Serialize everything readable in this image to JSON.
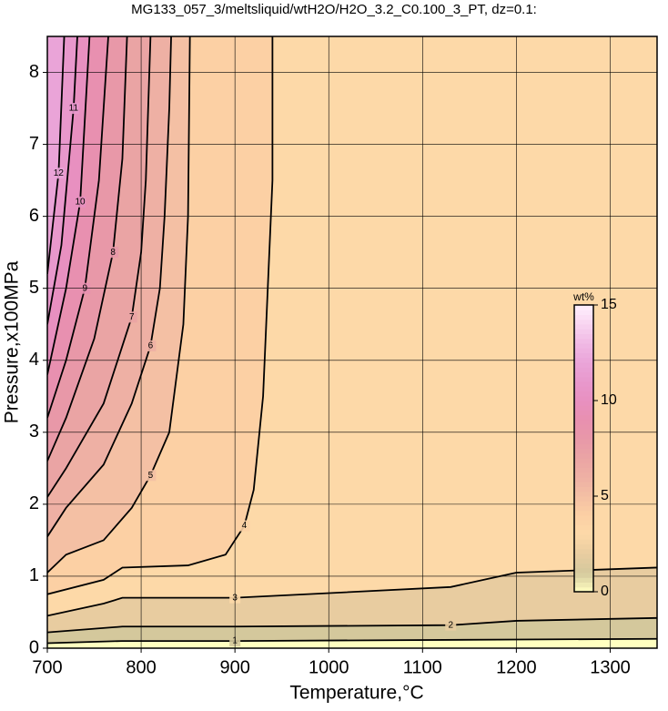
{
  "chart_data": {
    "type": "contour",
    "title": "MG133_057_3/meltsliquid/wtH2O/H2O_3.2_C0.100_3_PT, dz=0.1:",
    "x_label": "Temperature,°C",
    "y_label": "Pressure,x100MPa",
    "xlim": [
      700,
      1350
    ],
    "ylim": [
      0,
      8.5
    ],
    "xticks": [
      700,
      800,
      900,
      1000,
      1100,
      1200,
      1300
    ],
    "yticks": [
      0,
      1,
      2,
      3,
      4,
      5,
      6,
      7,
      8
    ],
    "grid": true,
    "line_color": "#000000",
    "colormap": [
      "#ffffc0",
      "#d4c89c",
      "#e8cca0",
      "#fdd9a8",
      "#fcd0a4",
      "#f4c0a4",
      "#eeb0a4",
      "#eaa4a4",
      "#e898a8",
      "#e890b0",
      "#e890c0",
      "#e898cc",
      "#eaa4d8",
      "#f0b8e4",
      "#f8d4f0",
      "#fff0ff"
    ],
    "colorbar": {
      "label": "wt%",
      "lim": [
        0,
        15
      ],
      "ticks": [
        0,
        5,
        10,
        15
      ]
    },
    "contours": [
      {
        "level": 1,
        "x": [
          700,
          780,
          900,
          1200,
          1350
        ],
        "y": [
          0.07,
          0.1,
          0.1,
          0.12,
          0.13
        ]
      },
      {
        "level": 2,
        "x": [
          700,
          780,
          900,
          1130,
          1200,
          1350
        ],
        "y": [
          0.22,
          0.3,
          0.3,
          0.32,
          0.38,
          0.42
        ]
      },
      {
        "level": 3,
        "x": [
          700,
          760,
          780,
          900,
          1130,
          1200,
          1350
        ],
        "y": [
          0.45,
          0.62,
          0.7,
          0.7,
          0.85,
          1.05,
          1.12
        ]
      },
      {
        "level": 4,
        "x": [
          700,
          760,
          780,
          850,
          890,
          910,
          920,
          930,
          935,
          940,
          940
        ],
        "y": [
          0.75,
          0.95,
          1.12,
          1.15,
          1.3,
          1.7,
          2.2,
          3.5,
          5.0,
          6.5,
          8.5
        ]
      },
      {
        "level": 5,
        "x": [
          700,
          720,
          760,
          790,
          810,
          830,
          845,
          850,
          852
        ],
        "y": [
          1.05,
          1.3,
          1.5,
          1.95,
          2.4,
          3.0,
          4.5,
          6.0,
          8.5
        ]
      },
      {
        "level": 6,
        "x": [
          700,
          720,
          760,
          790,
          810,
          820,
          825,
          830,
          832
        ],
        "y": [
          1.55,
          1.95,
          2.55,
          3.4,
          4.2,
          5.0,
          6.0,
          7.5,
          8.5
        ]
      },
      {
        "level": 7,
        "x": [
          700,
          720,
          760,
          790,
          800,
          805,
          810
        ],
        "y": [
          2.1,
          2.5,
          3.4,
          4.6,
          5.5,
          6.5,
          8.5
        ]
      },
      {
        "level": 8,
        "x": [
          700,
          720,
          750,
          770,
          780,
          785
        ],
        "y": [
          2.6,
          3.2,
          4.3,
          5.5,
          6.8,
          8.5
        ]
      },
      {
        "level": 9,
        "x": [
          700,
          720,
          740,
          755,
          765
        ],
        "y": [
          3.2,
          4.0,
          5.0,
          6.5,
          8.5
        ]
      },
      {
        "level": 10,
        "x": [
          700,
          720,
          735,
          745
        ],
        "y": [
          3.8,
          5.0,
          6.2,
          8.5
        ]
      },
      {
        "level": 11,
        "x": [
          700,
          715,
          728,
          732
        ],
        "y": [
          4.5,
          5.6,
          7.5,
          8.5
        ]
      },
      {
        "level": 12,
        "x": [
          700,
          712,
          718
        ],
        "y": [
          5.2,
          6.6,
          8.5
        ]
      }
    ]
  }
}
